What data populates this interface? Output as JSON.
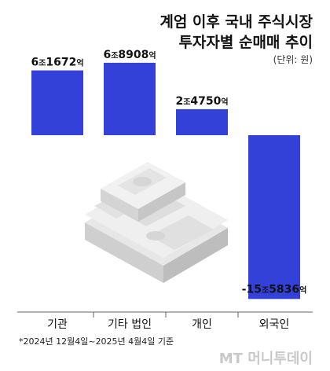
{
  "chart_data": {
    "type": "bar",
    "title_lines": [
      "계엄 이후 국내 주식시장",
      "투자자별 순매매 추이"
    ],
    "unit_label": "(단위: 원)",
    "categories": [
      "기관",
      "기타 법인",
      "개인",
      "외국인"
    ],
    "values": [
      61672,
      68908,
      24750,
      -155836
    ],
    "value_unit": "억원",
    "value_labels": [
      {
        "big": "6",
        "small1": "조",
        "num": "1672",
        "small2": "억"
      },
      {
        "big": "6",
        "small1": "조",
        "num": "8908",
        "small2": "억"
      },
      {
        "big": "2",
        "small1": "조",
        "num": "4750",
        "small2": "억"
      },
      {
        "big": "-15",
        "small1": "조",
        "num": "5836",
        "small2": "억"
      }
    ],
    "bar_color": "#3441d9",
    "footnote": "*2024년 12월4일~2025년 4월4일 기준",
    "grid": false,
    "legend": "none"
  },
  "branding": {
    "logo_text": "MT 머니투데이"
  }
}
